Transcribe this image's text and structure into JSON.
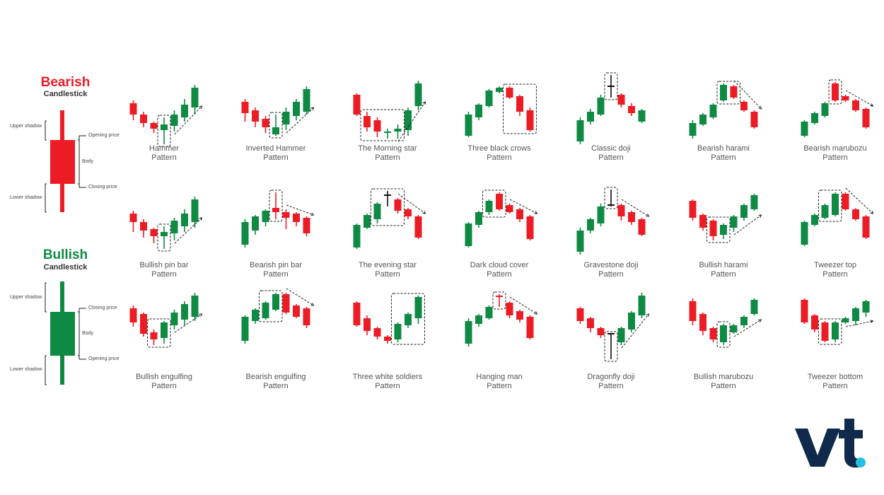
{
  "colors": {
    "bearish": "#ec1c24",
    "bullish": "#0e8a43",
    "logo": "#0f2a4a",
    "logo_dot": "#22c1e0"
  },
  "legend": {
    "bearish": {
      "title": "Bearish",
      "subtitle": "Candlestick",
      "labels": {
        "upper_shadow": "Upper shadow",
        "opening_price": "Opening price",
        "body": "Body",
        "closing_price": "Closing price",
        "lower_shadow": "Lower shadow"
      }
    },
    "bullish": {
      "title": "Bullish",
      "subtitle": "Candlestick",
      "labels": {
        "upper_shadow": "Upper shadow",
        "closing_price": "Closing price",
        "body": "Body",
        "opening_price": "Opening price",
        "lower_shadow": "Lower shadow"
      }
    }
  },
  "patterns": [
    {
      "id": "hammer",
      "name": "Hammer",
      "suffix": "Pattern",
      "arrow": "up",
      "highlight": [
        3,
        3
      ],
      "candles": [
        [
          "r",
          36,
          64,
          40,
          56
        ],
        [
          "r",
          52,
          74,
          56,
          68
        ],
        [
          "r",
          66,
          82,
          68,
          76
        ],
        [
          "g",
          60,
          98,
          70,
          78
        ],
        [
          "g",
          50,
          80,
          56,
          72
        ],
        [
          "g",
          34,
          66,
          42,
          60
        ],
        [
          "g",
          14,
          56,
          18,
          46
        ]
      ]
    },
    {
      "id": "inverted-hammer",
      "name": "Inverted Hammer",
      "suffix": "Pattern",
      "arrow": "up",
      "highlight": [
        3,
        3
      ],
      "candles": [
        [
          "r",
          34,
          66,
          38,
          54
        ],
        [
          "r",
          46,
          74,
          50,
          66
        ],
        [
          "r",
          58,
          82,
          62,
          74
        ],
        [
          "g",
          56,
          86,
          74,
          84
        ],
        [
          "g",
          46,
          78,
          52,
          70
        ],
        [
          "g",
          34,
          64,
          38,
          58
        ],
        [
          "g",
          16,
          56,
          20,
          52
        ]
      ]
    },
    {
      "id": "morning-star",
      "name": "The Morning star",
      "suffix": "Pattern",
      "arrow": "up",
      "highlight": [
        1,
        4
      ],
      "candles": [
        [
          "r",
          26,
          58,
          28,
          56
        ],
        [
          "r",
          52,
          80,
          58,
          74
        ],
        [
          "r",
          60,
          88,
          64,
          80
        ],
        [
          "g",
          76,
          90,
          80,
          82
        ],
        [
          "g",
          70,
          90,
          76,
          80
        ],
        [
          "g",
          46,
          86,
          50,
          78
        ],
        [
          "g",
          8,
          50,
          12,
          44
        ]
      ]
    },
    {
      "id": "three-black-crows",
      "name": "Three black crows",
      "suffix": "Pattern",
      "arrow": "none",
      "highlight": [
        4,
        6
      ],
      "candles": [
        [
          "g",
          52,
          88,
          56,
          86
        ],
        [
          "g",
          40,
          64,
          42,
          60
        ],
        [
          "g",
          20,
          46,
          22,
          44
        ],
        [
          "g",
          16,
          26,
          18,
          24
        ],
        [
          "r",
          16,
          34,
          18,
          32
        ],
        [
          "r",
          28,
          58,
          30,
          52
        ],
        [
          "r",
          46,
          80,
          50,
          78
        ]
      ]
    },
    {
      "id": "classic-doji",
      "name": "Classic doji",
      "suffix": "Pattern",
      "arrow": "none",
      "highlight": [
        3,
        3
      ],
      "candles": [
        [
          "g",
          60,
          98,
          64,
          94
        ],
        [
          "g",
          48,
          70,
          52,
          66
        ],
        [
          "g",
          28,
          58,
          32,
          56
        ],
        [
          "x",
          0,
          32,
          16,
          17
        ],
        [
          "r",
          26,
          46,
          28,
          42
        ],
        [
          "r",
          40,
          58,
          44,
          54
        ],
        [
          "g",
          48,
          68,
          50,
          66
        ]
      ]
    },
    {
      "id": "bearish-harami",
      "name": "Bearish harami",
      "suffix": "Pattern",
      "arrow": "down",
      "highlight": [
        3,
        4
      ],
      "candles": [
        [
          "g",
          64,
          90,
          68,
          86
        ],
        [
          "g",
          54,
          72,
          56,
          70
        ],
        [
          "g",
          40,
          62,
          42,
          60
        ],
        [
          "g",
          12,
          38,
          14,
          36
        ],
        [
          "r",
          14,
          34,
          16,
          32
        ],
        [
          "r",
          36,
          52,
          38,
          50
        ],
        [
          "r",
          50,
          76,
          52,
          74
        ]
      ]
    },
    {
      "id": "bearish-marubozu",
      "name": "Bearish marubozu",
      "suffix": "Pattern",
      "arrow": "down",
      "highlight": [
        3,
        3
      ],
      "candles": [
        [
          "g",
          64,
          88,
          66,
          86
        ],
        [
          "g",
          52,
          70,
          54,
          68
        ],
        [
          "g",
          38,
          60,
          40,
          58
        ],
        [
          "r",
          10,
          38,
          12,
          36
        ],
        [
          "r",
          28,
          38,
          30,
          36
        ],
        [
          "r",
          34,
          52,
          36,
          50
        ],
        [
          "r",
          46,
          76,
          48,
          74
        ]
      ]
    },
    {
      "id": "bullish-pin-bar",
      "name": "Bullish pin bar",
      "suffix": "Pattern",
      "arrow": "up",
      "highlight": [
        3,
        3
      ],
      "candles": [
        [
          "r",
          30,
          60,
          34,
          46
        ],
        [
          "r",
          42,
          68,
          46,
          58
        ],
        [
          "r",
          54,
          76,
          56,
          66
        ],
        [
          "g",
          52,
          84,
          60,
          66
        ],
        [
          "g",
          40,
          72,
          44,
          62
        ],
        [
          "g",
          28,
          60,
          34,
          52
        ],
        [
          "g",
          10,
          54,
          14,
          46
        ]
      ]
    },
    {
      "id": "bearish-pin-bar",
      "name": "Bearish pin bar",
      "suffix": "Pattern",
      "arrow": "down",
      "highlight": [
        3,
        3
      ],
      "candles": [
        [
          "g",
          42,
          82,
          46,
          78
        ],
        [
          "g",
          36,
          64,
          38,
          58
        ],
        [
          "g",
          28,
          52,
          30,
          46
        ],
        [
          "r",
          4,
          42,
          26,
          32
        ],
        [
          "r",
          28,
          56,
          32,
          40
        ],
        [
          "r",
          32,
          52,
          34,
          46
        ],
        [
          "r",
          38,
          66,
          40,
          62
        ]
      ]
    },
    {
      "id": "evening-star",
      "name": "The evening star",
      "suffix": "Pattern",
      "arrow": "down",
      "highlight": [
        2,
        4
      ],
      "candles": [
        [
          "g",
          48,
          84,
          50,
          82
        ],
        [
          "g",
          34,
          56,
          36,
          54
        ],
        [
          "g",
          18,
          48,
          20,
          42
        ],
        [
          "x",
          2,
          24,
          8,
          9
        ],
        [
          "r",
          12,
          34,
          14,
          30
        ],
        [
          "r",
          26,
          42,
          28,
          38
        ],
        [
          "r",
          36,
          70,
          38,
          68
        ]
      ]
    },
    {
      "id": "dark-cloud-cover",
      "name": "Dark cloud cover",
      "suffix": "Pattern",
      "arrow": "down",
      "highlight": [
        2,
        3
      ],
      "candles": [
        [
          "g",
          46,
          82,
          48,
          80
        ],
        [
          "g",
          30,
          54,
          32,
          50
        ],
        [
          "g",
          14,
          36,
          16,
          32
        ],
        [
          "r",
          4,
          30,
          6,
          28
        ],
        [
          "r",
          20,
          34,
          22,
          32
        ],
        [
          "r",
          26,
          46,
          28,
          42
        ],
        [
          "r",
          36,
          72,
          38,
          70
        ]
      ]
    },
    {
      "id": "gravestone-doji",
      "name": "Gravestone doji",
      "suffix": "Pattern",
      "arrow": "down",
      "highlight": [
        3,
        3
      ],
      "candles": [
        [
          "g",
          54,
          92,
          58,
          88
        ],
        [
          "g",
          40,
          62,
          42,
          58
        ],
        [
          "g",
          20,
          52,
          24,
          48
        ],
        [
          "x",
          0,
          24,
          22,
          23
        ],
        [
          "r",
          20,
          44,
          22,
          38
        ],
        [
          "r",
          30,
          50,
          32,
          46
        ],
        [
          "r",
          40,
          66,
          42,
          64
        ]
      ]
    },
    {
      "id": "bullish-harami",
      "name": "Bullish harami",
      "suffix": "Pattern",
      "arrow": "up",
      "highlight": [
        2,
        3
      ],
      "candles": [
        [
          "r",
          14,
          44,
          16,
          40
        ],
        [
          "r",
          34,
          58,
          36,
          54
        ],
        [
          "r",
          42,
          72,
          44,
          66
        ],
        [
          "g",
          48,
          70,
          50,
          64
        ],
        [
          "g",
          36,
          60,
          38,
          54
        ],
        [
          "g",
          20,
          44,
          22,
          40
        ],
        [
          "g",
          6,
          30,
          8,
          28
        ]
      ]
    },
    {
      "id": "tweezer-top",
      "name": "Tweezer top",
      "suffix": "Pattern",
      "arrow": "down",
      "highlight": [
        2,
        3
      ],
      "candles": [
        [
          "g",
          44,
          80,
          46,
          78
        ],
        [
          "g",
          34,
          52,
          36,
          50
        ],
        [
          "g",
          20,
          42,
          22,
          40
        ],
        [
          "g",
          4,
          38,
          6,
          36
        ],
        [
          "r",
          4,
          30,
          6,
          28
        ],
        [
          "r",
          26,
          44,
          28,
          42
        ],
        [
          "r",
          36,
          70,
          38,
          68
        ]
      ]
    },
    {
      "id": "bullish-engulfing",
      "name": "Bullish engulfing",
      "suffix": "Pattern",
      "arrow": "up",
      "highlight": [
        2,
        3
      ],
      "candles": [
        [
          "r",
          18,
          48,
          22,
          42
        ],
        [
          "r",
          28,
          62,
          30,
          58
        ],
        [
          "r",
          52,
          74,
          56,
          66
        ],
        [
          "g",
          40,
          72,
          42,
          64
        ],
        [
          "g",
          24,
          52,
          28,
          46
        ],
        [
          "g",
          12,
          46,
          16,
          38
        ],
        [
          "g",
          0,
          40,
          4,
          34
        ]
      ]
    },
    {
      "id": "bearish-engulfing",
      "name": "Bearish engulfing",
      "suffix": "Pattern",
      "arrow": "down",
      "highlight": [
        2,
        3
      ],
      "candles": [
        [
          "g",
          32,
          72,
          34,
          68
        ],
        [
          "g",
          22,
          44,
          24,
          40
        ],
        [
          "g",
          12,
          38,
          14,
          36
        ],
        [
          "g",
          0,
          26,
          2,
          24
        ],
        [
          "r",
          0,
          30,
          2,
          28
        ],
        [
          "r",
          16,
          36,
          18,
          34
        ],
        [
          "r",
          20,
          50,
          22,
          46
        ]
      ]
    },
    {
      "id": "three-white-soldiers",
      "name": "Three white soldiers",
      "suffix": "Pattern",
      "arrow": "none",
      "highlight": [
        4,
        6
      ],
      "candles": [
        [
          "r",
          12,
          48,
          14,
          46
        ],
        [
          "r",
          32,
          60,
          36,
          54
        ],
        [
          "r",
          48,
          66,
          50,
          62
        ],
        [
          "r",
          60,
          72,
          62,
          68
        ],
        [
          "g",
          42,
          70,
          44,
          66
        ],
        [
          "g",
          28,
          50,
          30,
          46
        ],
        [
          "g",
          4,
          44,
          6,
          36
        ]
      ]
    },
    {
      "id": "hanging-man",
      "name": "Hanging man",
      "suffix": "Pattern",
      "arrow": "down",
      "highlight": [
        3,
        3
      ],
      "candles": [
        [
          "g",
          36,
          76,
          40,
          72
        ],
        [
          "g",
          30,
          48,
          32,
          44
        ],
        [
          "g",
          18,
          38,
          20,
          36
        ],
        [
          "r",
          2,
          20,
          4,
          6
        ],
        [
          "r",
          12,
          36,
          14,
          32
        ],
        [
          "r",
          24,
          42,
          26,
          38
        ],
        [
          "r",
          32,
          66,
          34,
          64
        ]
      ]
    },
    {
      "id": "dragonfly-doji",
      "name": "Dragonfly doji",
      "suffix": "Pattern",
      "arrow": "up",
      "highlight": [
        3,
        3
      ],
      "candles": [
        [
          "r",
          20,
          44,
          22,
          40
        ],
        [
          "r",
          34,
          56,
          36,
          50
        ],
        [
          "r",
          48,
          64,
          50,
          60
        ],
        [
          "x",
          58,
          94,
          58,
          59
        ],
        [
          "g",
          48,
          74,
          50,
          70
        ],
        [
          "g",
          26,
          56,
          28,
          52
        ],
        [
          "g",
          0,
          36,
          4,
          32
        ]
      ]
    },
    {
      "id": "bullish-marubozu",
      "name": "Bullish marubozu",
      "suffix": "Pattern",
      "arrow": "up",
      "highlight": [
        3,
        3
      ],
      "candles": [
        [
          "r",
          8,
          46,
          12,
          40
        ],
        [
          "r",
          28,
          60,
          30,
          54
        ],
        [
          "r",
          48,
          70,
          50,
          66
        ],
        [
          "g",
          44,
          74,
          46,
          70
        ],
        [
          "g",
          44,
          58,
          46,
          56
        ],
        [
          "g",
          32,
          50,
          34,
          46
        ],
        [
          "g",
          8,
          32,
          10,
          30
        ]
      ]
    },
    {
      "id": "tweezer-bottom",
      "name": "Tweezer bottom",
      "suffix": "Pattern",
      "arrow": "up",
      "highlight": [
        2,
        3
      ],
      "candles": [
        [
          "r",
          8,
          44,
          10,
          42
        ],
        [
          "r",
          30,
          56,
          32,
          52
        ],
        [
          "r",
          40,
          70,
          42,
          68
        ],
        [
          "g",
          40,
          70,
          42,
          66
        ],
        [
          "g",
          34,
          44,
          36,
          42
        ],
        [
          "g",
          20,
          46,
          22,
          40
        ],
        [
          "g",
          10,
          34,
          12,
          28
        ]
      ]
    }
  ]
}
